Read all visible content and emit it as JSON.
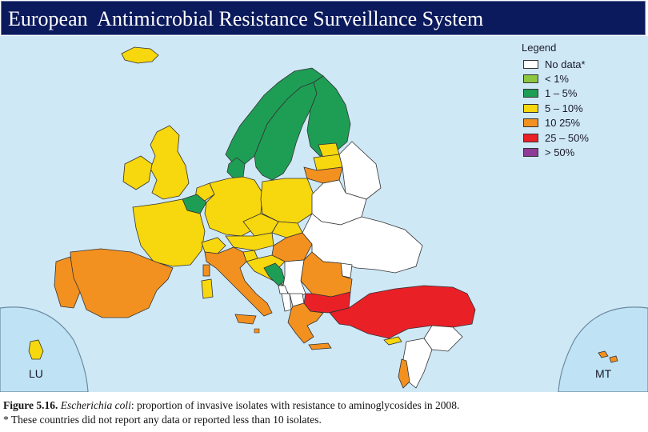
{
  "header": {
    "title": "European  Antimicrobial Resistance Surveillance System"
  },
  "legend": {
    "title": "Legend",
    "items": [
      {
        "label": "No data*",
        "color": "#ffffff"
      },
      {
        "label": "< 1%",
        "color": "#8dc63f"
      },
      {
        "label": "1 – 5%",
        "color": "#1e9e55"
      },
      {
        "label": "5 – 10%",
        "color": "#f7d70d"
      },
      {
        "label": "10   25%",
        "color": "#f29120"
      },
      {
        "label": "25 – 50%",
        "color": "#ea2027"
      },
      {
        "label": "> 50%",
        "color": "#8e3c97"
      }
    ]
  },
  "colors": {
    "sea": "#cfe8f6",
    "land_outside": "#f4f4f4",
    "inset_sea": "#bfe3f5",
    "border": "#333333",
    "title_bar": "#0b1a5c"
  },
  "insets": {
    "left_label": "LU",
    "right_label": "MT"
  },
  "caption": {
    "figure_label": "Figure 5.16.",
    "species": "Escherichia coli",
    "text": ": proportion of invasive isolates with resistance to aminoglycosides in 2008.",
    "footnote": "* These countries did not report any data or reported less than 10 isolates."
  }
}
